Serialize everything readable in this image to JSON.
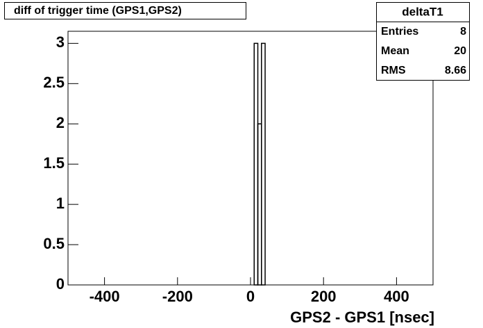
{
  "chart_data": {
    "type": "histogram",
    "title": "diff of trigger time (GPS1,GPS2)",
    "x_label": "GPS2 - GPS1 [nsec]",
    "bins": [
      10,
      20,
      30,
      40
    ],
    "values": [
      3,
      2,
      3
    ],
    "color": "#000000",
    "xlim": [
      -500,
      500
    ],
    "xticks": [
      -400,
      -200,
      0,
      200,
      400
    ],
    "ylim": [
      0,
      3.15
    ],
    "yticks": [
      0,
      0.5,
      1,
      1.5,
      2,
      2.5,
      3
    ],
    "stats": {
      "title": "deltaT1",
      "rows": [
        {
          "label": "Entries",
          "value": 8
        },
        {
          "label": "Mean",
          "value": 20
        },
        {
          "label": "RMS",
          "value": 8.66
        }
      ]
    }
  }
}
